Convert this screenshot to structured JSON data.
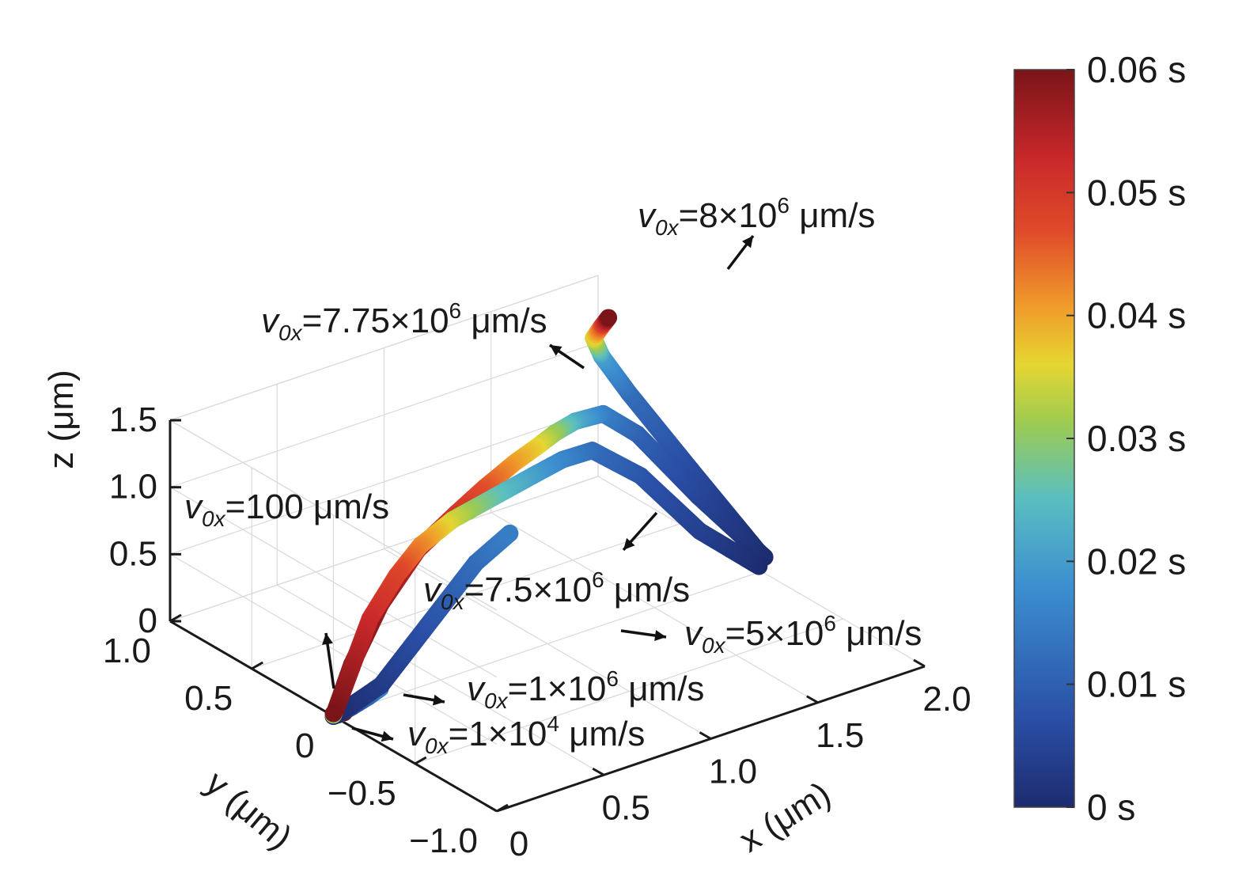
{
  "chart_data": {
    "type": "line",
    "subtype": "3d-trajectory",
    "axes": {
      "x": {
        "label": "x (μm)",
        "ticks": [
          "0",
          "0.5",
          "1.0",
          "1.5",
          "2.0"
        ],
        "range": [
          0,
          2.0
        ]
      },
      "y": {
        "label": "y (μm)",
        "ticks": [
          "−1.0",
          "−0.5",
          "0",
          "0.5",
          "1.0"
        ],
        "range": [
          -1.0,
          1.0
        ]
      },
      "z": {
        "label": "z (μm)",
        "ticks": [
          "0",
          "0.5",
          "1.0",
          "1.5"
        ],
        "range": [
          0,
          1.5
        ]
      }
    },
    "grid": true,
    "colorbar": {
      "quantity": "time",
      "range": [
        0,
        0.06
      ],
      "ticks": [
        "0 s",
        "0.01 s",
        "0.02 s",
        "0.03 s",
        "0.04 s",
        "0.05 s",
        "0.06 s"
      ],
      "colormap": [
        "#1d2b6e",
        "#2a4fa6",
        "#3c8fd0",
        "#5bbfc0",
        "#9ccb52",
        "#e6d632",
        "#f09a2a",
        "#e04b2a",
        "#c9282a",
        "#7a1418"
      ]
    },
    "series": [
      {
        "annotation": {
          "prefix": "v",
          "sub": "0x",
          "mid": "=1×10",
          "sup": "4",
          "suffix": " μm/s"
        },
        "points": [
          [
            0.01,
            0.0,
            0.0,
            0.0
          ],
          [
            0.05,
            0.0,
            0.0,
            0.06
          ]
        ]
      },
      {
        "annotation": {
          "prefix": "v",
          "sub": "0x",
          "mid": "=1×10",
          "sup": "6",
          "suffix": " μm/s"
        },
        "points": [
          [
            0.02,
            0.0,
            0.0,
            0.0
          ],
          [
            0.1,
            0.02,
            0.0,
            0.005
          ],
          [
            0.2,
            0.05,
            0.0,
            0.01
          ],
          [
            0.28,
            0.08,
            0.0,
            0.015
          ]
        ]
      },
      {
        "annotation": {
          "prefix": "v",
          "sub": "0x",
          "mid": "=5×10",
          "sup": "6",
          "suffix": " μm/s"
        },
        "points": [
          [
            0.02,
            0.0,
            0.0,
            0.0
          ],
          [
            0.3,
            0.1,
            0.0,
            0.003
          ],
          [
            0.6,
            0.3,
            0.0,
            0.006
          ],
          [
            0.9,
            0.5,
            0.0,
            0.009
          ],
          [
            1.2,
            0.7,
            0.0,
            0.012
          ],
          [
            1.45,
            0.82,
            0.0,
            0.015
          ]
        ]
      },
      {
        "annotation": {
          "prefix": "v",
          "sub": "0x",
          "mid": "=7.5×10",
          "sup": "6",
          "suffix": " μm/s"
        },
        "points": [
          [
            1.95,
            -0.05,
            0.1,
            0.0
          ],
          [
            1.75,
            0.05,
            0.4,
            0.004
          ],
          [
            1.55,
            0.15,
            0.85,
            0.008
          ],
          [
            1.4,
            0.25,
            1.05,
            0.012
          ],
          [
            1.3,
            0.3,
            1.0,
            0.016
          ],
          [
            1.2,
            0.35,
            0.9,
            0.02
          ],
          [
            1.05,
            0.4,
            0.78,
            0.026
          ],
          [
            0.9,
            0.45,
            0.66,
            0.034
          ],
          [
            0.75,
            0.45,
            0.55,
            0.042
          ],
          [
            0.6,
            0.4,
            0.44,
            0.048
          ],
          [
            0.4,
            0.3,
            0.3,
            0.052
          ],
          [
            0.2,
            0.15,
            0.15,
            0.056
          ],
          [
            0.0,
            0.0,
            0.0,
            0.06
          ]
        ]
      },
      {
        "annotation": {
          "prefix": "v",
          "sub": "0x",
          "mid": "=7.75×10",
          "sup": "6",
          "suffix": " μm/s"
        },
        "points": [
          [
            2.0,
            -0.02,
            0.12,
            0.0
          ],
          [
            1.82,
            0.15,
            0.55,
            0.005
          ],
          [
            1.65,
            0.3,
            1.0,
            0.01
          ],
          [
            1.55,
            0.38,
            1.15,
            0.015
          ],
          [
            1.45,
            0.42,
            1.12,
            0.022
          ],
          [
            1.38,
            0.45,
            1.05,
            0.03
          ],
          [
            1.3,
            0.46,
            0.98,
            0.036
          ],
          [
            1.2,
            0.46,
            0.92,
            0.04
          ],
          [
            1.05,
            0.45,
            0.82,
            0.046
          ],
          [
            0.9,
            0.43,
            0.72,
            0.05
          ],
          [
            0.7,
            0.4,
            0.58,
            0.054
          ],
          [
            0.45,
            0.3,
            0.38,
            0.057
          ],
          [
            0.2,
            0.15,
            0.17,
            0.059
          ],
          [
            0.0,
            0.0,
            0.0,
            0.06
          ]
        ]
      },
      {
        "annotation": {
          "prefix": "v",
          "sub": "0x",
          "mid": "=8×10",
          "sup": "6",
          "suffix": " μm/s"
        },
        "points": [
          [
            2.0,
            0.0,
            0.12,
            0.0
          ],
          [
            1.9,
            0.3,
            0.6,
            0.006
          ],
          [
            1.8,
            0.55,
            1.05,
            0.012
          ],
          [
            1.75,
            0.65,
            1.28,
            0.02
          ],
          [
            1.75,
            0.7,
            1.38,
            0.035
          ],
          [
            1.8,
            0.72,
            1.42,
            0.045
          ],
          [
            1.85,
            0.74,
            1.45,
            0.06
          ]
        ]
      },
      {
        "annotation": {
          "prefix": "v",
          "sub": "0x",
          "mid": "=100 μm/s",
          "sup": "",
          "suffix": ""
        },
        "points": [
          [
            0.0,
            0.0,
            0.0,
            0.0
          ],
          [
            0.0,
            0.0,
            0.02,
            0.06
          ]
        ]
      }
    ]
  }
}
